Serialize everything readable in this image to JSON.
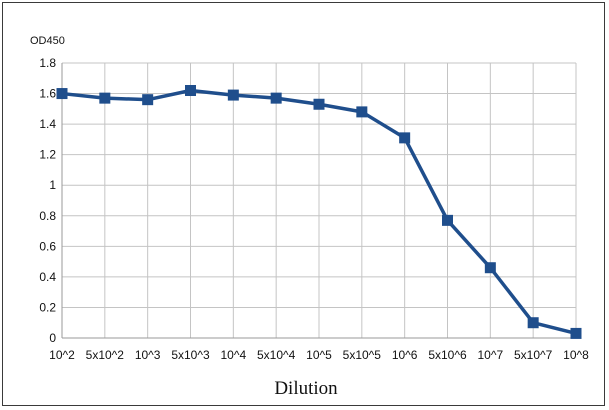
{
  "chart_data": {
    "type": "line",
    "ylabel": "OD450",
    "xlabel": "Dilution",
    "ylim": [
      0,
      1.8
    ],
    "ytick_step": 0.2,
    "yticks": [
      "0",
      "0.2",
      "0.4",
      "0.6",
      "0.8",
      "1",
      "1.2",
      "1.4",
      "1.6",
      "1.8"
    ],
    "categories": [
      "10^2",
      "5x10^2",
      "10^3",
      "5x10^3",
      "10^4",
      "5x10^4",
      "10^5",
      "5x10^5",
      "10^6",
      "5x10^6",
      "10^7",
      "5x10^7",
      "10^8"
    ],
    "series": [
      {
        "values": [
          1.6,
          1.57,
          1.56,
          1.62,
          1.59,
          1.57,
          1.53,
          1.48,
          1.31,
          0.77,
          0.46,
          0.1,
          0.03
        ],
        "color": "#1f4e8c",
        "marker": "square"
      }
    ],
    "grid": true,
    "legend": "none"
  }
}
